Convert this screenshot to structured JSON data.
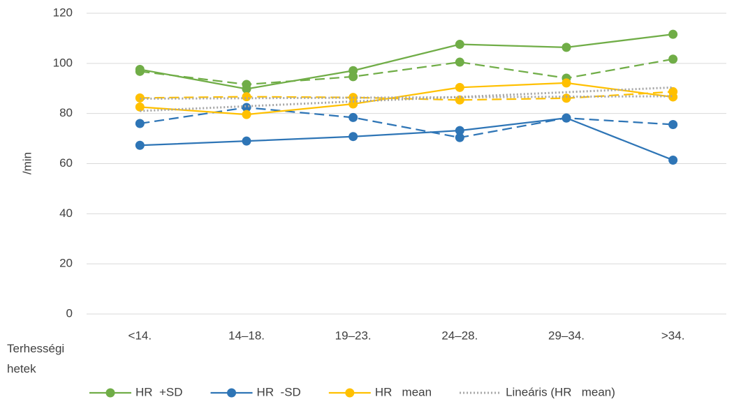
{
  "chart_data": {
    "type": "line",
    "y_label": "/min",
    "x_label": "Terhességi hetek",
    "categories": [
      "<14.",
      "14–18.",
      "19–23.",
      "24–28.",
      "29–34.",
      ">34."
    ],
    "ylim": [
      0,
      120
    ],
    "yticks": [
      0,
      20,
      40,
      60,
      80,
      100,
      120
    ],
    "grid": true,
    "series": [
      {
        "name": "HR  +SD",
        "color": "#70ad47",
        "style": "solid",
        "marker": true,
        "values": [
          97.6,
          89.8,
          97.1,
          107.6,
          106.4,
          111.6
        ]
      },
      {
        "color": "#70ad47",
        "style": "dashed",
        "marker": true,
        "values": [
          96.8,
          91.6,
          94.7,
          100.5,
          94.1,
          101.7
        ]
      },
      {
        "name": "HR  -SD",
        "color": "#2e75b6",
        "style": "solid",
        "marker": true,
        "values": [
          67.3,
          69.0,
          70.8,
          73.2,
          78.2,
          61.4
        ]
      },
      {
        "color": "#2e75b6",
        "style": "dashed",
        "marker": true,
        "values": [
          76.0,
          82.4,
          78.4,
          70.4,
          78.2,
          75.6
        ]
      },
      {
        "name": "HR   mean",
        "color": "#ffc000",
        "style": "solid",
        "marker": true,
        "values": [
          82.6,
          79.6,
          83.8,
          90.4,
          92.2,
          86.6
        ]
      },
      {
        "color": "#ffc000",
        "style": "dashed",
        "marker": true,
        "values": [
          86.2,
          86.7,
          86.4,
          85.4,
          86.1,
          88.7
        ]
      },
      {
        "name": "Lineáris (HR   mean)",
        "color": "#a5a5a5",
        "style": "dotted",
        "marker": false,
        "values": [
          81.0,
          82.9,
          84.8,
          86.6,
          88.5,
          90.4
        ]
      },
      {
        "color": "#a5a5a5",
        "style": "dotted",
        "marker": false,
        "values": [
          85.9,
          86.1,
          86.3,
          86.5,
          86.7,
          86.9
        ]
      }
    ]
  }
}
